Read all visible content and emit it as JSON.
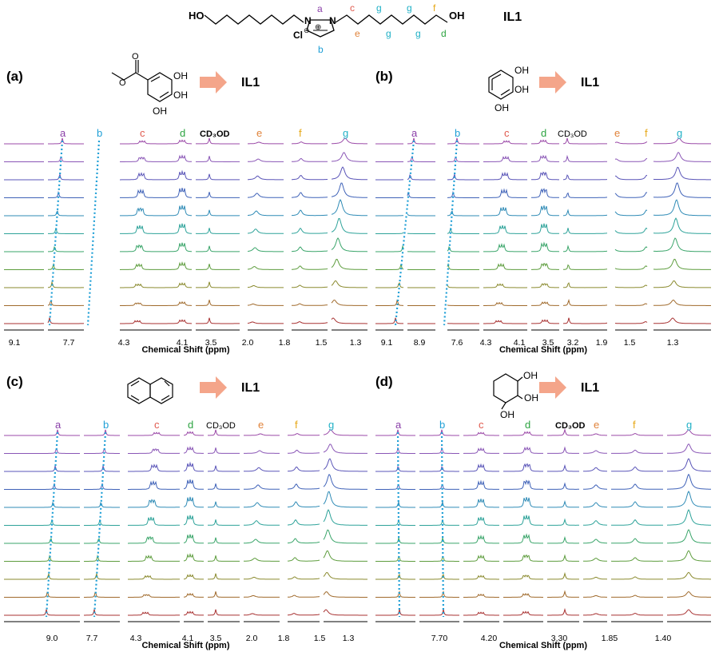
{
  "colors": {
    "a": "#8a3fa8",
    "b": "#1f9fd6",
    "c": "#e05a4e",
    "d": "#2ca340",
    "e": "#e0833a",
    "f": "#e6a817",
    "g": "#1fb0c6",
    "dashed_guide": "#1f9fd6",
    "reaction_arrow": "#f4a58a",
    "trace_colors": [
      "#9b4aa8",
      "#8a56b6",
      "#5a55b8",
      "#3f62b8",
      "#2f8bb6",
      "#2ea39a",
      "#3aa56a",
      "#5e9d3e",
      "#8a8a2e",
      "#a06a2c",
      "#a83232"
    ]
  },
  "header": {
    "compound_label": "IL1",
    "ho_left": "HO",
    "oh_right": "OH",
    "counterion": "Cl",
    "charge": "⊖",
    "plus": "⊕",
    "n_left": "N",
    "n_right": "N",
    "peak_labels_top": [
      "a",
      "c",
      "g",
      "g",
      "f"
    ],
    "peak_labels_bottom": [
      "b",
      "e",
      "g",
      "g",
      "d"
    ]
  },
  "panels": [
    {
      "tag": "(a)",
      "product": "IL1",
      "reactant": "methyl gallate",
      "substituents": [
        "OH",
        "OH",
        "OH"
      ],
      "axis_label": "Chemical Shift (ppm)",
      "ticks": [
        "9.1",
        "7.7",
        "4.3",
        "4.1",
        "3.5",
        "2.0",
        "1.8",
        "1.5",
        "1.3"
      ],
      "peak_labels": [
        "a",
        "b",
        "c",
        "d",
        "CD3OD",
        "e",
        "f",
        "g"
      ],
      "solvent_text": "CD₃OD"
    },
    {
      "tag": "(b)",
      "product": "IL1",
      "reactant": "pyrogallol",
      "substituents": [
        "OH",
        "OH",
        "OH"
      ],
      "axis_label": "Chemical Shift (ppm)",
      "ticks": [
        "9.1",
        "8.9",
        "7.6",
        "4.3",
        "4.1",
        "3.5",
        "3.2",
        "1.9",
        "1.5",
        "1.3"
      ],
      "peak_labels": [
        "a",
        "b",
        "c",
        "d",
        "CD3OD",
        "e",
        "f",
        "g"
      ],
      "solvent_text": "CD₃OD"
    },
    {
      "tag": "(c)",
      "product": "IL1",
      "reactant": "naphthalene",
      "substituents": [],
      "axis_label": "Chemical Shift (ppm)",
      "ticks": [
        "9.0",
        "7.7",
        "4.3",
        "4.1",
        "3.5",
        "2.0",
        "1.8",
        "1.5",
        "1.3"
      ],
      "peak_labels": [
        "a",
        "b",
        "c",
        "d",
        "CD3OD",
        "e",
        "f",
        "g"
      ],
      "solvent_text": "CD₃OD"
    },
    {
      "tag": "(d)",
      "product": "IL1",
      "reactant": "cyclohexanetriol",
      "substituents": [
        "OH",
        "OH",
        "OH"
      ],
      "axis_label": "Chemical Shift (ppm)",
      "ticks": [
        "7.70",
        "4.20",
        "3.30",
        "1.85",
        "1.40"
      ],
      "peak_labels": [
        "a",
        "b",
        "c",
        "d",
        "CD3OD",
        "e",
        "f",
        "g"
      ],
      "solvent_text": "CD₃OD"
    }
  ]
}
